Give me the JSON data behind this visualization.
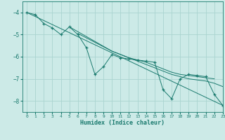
{
  "xlabel": "Humidex (Indice chaleur)",
  "background_color": "#cceae7",
  "grid_color": "#aad4d0",
  "line_color": "#1a7a6e",
  "xlim": [
    -0.5,
    23
  ],
  "ylim": [
    -8.5,
    -3.5
  ],
  "yticks": [
    -8,
    -7,
    -6,
    -5,
    -4
  ],
  "xticks": [
    0,
    1,
    2,
    3,
    4,
    5,
    6,
    7,
    8,
    9,
    10,
    11,
    12,
    13,
    14,
    15,
    16,
    17,
    18,
    19,
    20,
    21,
    22,
    23
  ],
  "main_x": [
    0,
    1,
    2,
    3,
    4,
    5,
    6,
    7,
    8,
    9,
    10,
    11,
    12,
    13,
    14,
    15,
    16,
    17,
    18,
    19,
    20,
    21,
    22,
    23
  ],
  "main_y": [
    -4.0,
    -4.1,
    -4.5,
    -4.7,
    -5.0,
    -4.65,
    -5.0,
    -5.6,
    -6.8,
    -6.45,
    -5.9,
    -6.05,
    -6.1,
    -6.15,
    -6.2,
    -6.25,
    -7.5,
    -7.9,
    -7.0,
    -6.8,
    -6.85,
    -6.9,
    -7.7,
    -8.2
  ],
  "line1_x": [
    0,
    23
  ],
  "line1_y": [
    -4.0,
    -8.2
  ],
  "line2_x": [
    5,
    10,
    11,
    12,
    13,
    14,
    15,
    16,
    17,
    18,
    19,
    20,
    21,
    22,
    23
  ],
  "line2_y": [
    -4.65,
    -5.75,
    -5.9,
    -6.05,
    -6.2,
    -6.35,
    -6.5,
    -6.65,
    -6.8,
    -6.9,
    -7.0,
    -7.05,
    -7.1,
    -7.2,
    -7.35
  ],
  "line3_x": [
    6,
    10,
    11,
    12,
    13,
    14,
    15,
    16,
    17,
    18,
    19,
    20,
    21,
    22
  ],
  "line3_y": [
    -4.95,
    -5.75,
    -5.9,
    -6.05,
    -6.15,
    -6.25,
    -6.4,
    -6.55,
    -6.7,
    -6.8,
    -6.85,
    -6.9,
    -6.95,
    -7.0
  ]
}
